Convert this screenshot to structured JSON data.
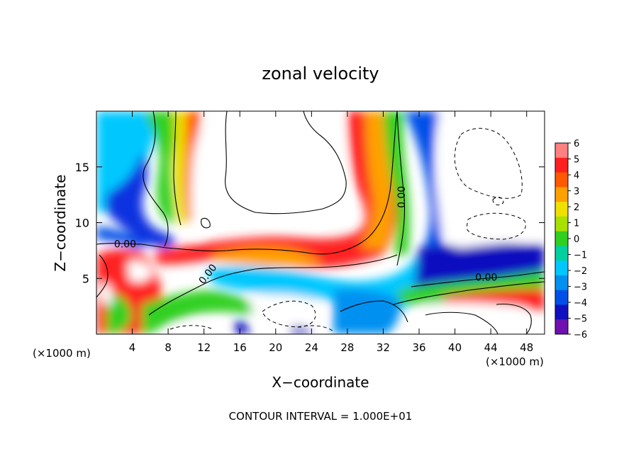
{
  "chart_data": {
    "type": "heatmap",
    "title": "zonal velocity",
    "xlabel": "X−coordinate",
    "ylabel": "Z−coordinate",
    "x_unit": "(×1000 m)",
    "x_unit_right": "(×1000 m)",
    "footer": "CONTOUR INTERVAL = 1.000E+01",
    "xlim": [
      0,
      50
    ],
    "ylim": [
      0,
      20
    ],
    "x_ticks": [
      4,
      8,
      12,
      16,
      20,
      24,
      28,
      32,
      36,
      40,
      44,
      48
    ],
    "x_tick_labels": [
      "4",
      "8",
      "12",
      "16",
      "20",
      "24",
      "28",
      "32",
      "36",
      "40",
      "44",
      "48"
    ],
    "y_ticks": [
      5,
      10,
      15
    ],
    "y_tick_labels": [
      "5",
      "10",
      "15"
    ],
    "colorbar": {
      "min": -6,
      "max": 6,
      "ticks": [
        "6",
        "5",
        "4",
        "3",
        "2",
        "1",
        "0",
        "−1",
        "−2",
        "−3",
        "−4",
        "−5",
        "−6"
      ],
      "colors": [
        "#ff8080",
        "#ff2020",
        "#ff5a00",
        "#ffa000",
        "#f0e000",
        "#a8e000",
        "#30d020",
        "#00d0a0",
        "#00c8ff",
        "#0090f0",
        "#0050e8",
        "#1010c0",
        "#7010b0"
      ]
    },
    "contour_labels": [
      {
        "text": "0.00",
        "x": 3.2,
        "y": 8.1,
        "rot": 0
      },
      {
        "text": "0.00",
        "x": 12.4,
        "y": 5.4,
        "rot": -52
      },
      {
        "text": "0.00",
        "x": 34.0,
        "y": 12.3,
        "rot": -90
      },
      {
        "text": "0.00",
        "x": 43.5,
        "y": 5.1,
        "rot": 0
      }
    ]
  }
}
